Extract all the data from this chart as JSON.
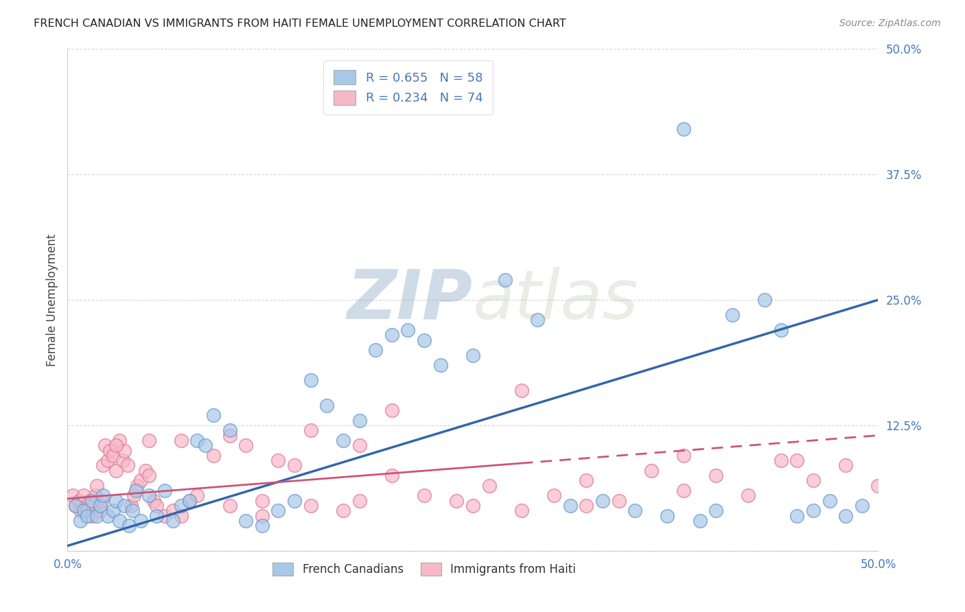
{
  "title": "FRENCH CANADIAN VS IMMIGRANTS FROM HAITI FEMALE UNEMPLOYMENT CORRELATION CHART",
  "source": "Source: ZipAtlas.com",
  "ylabel": "Female Unemployment",
  "xlim": [
    0.0,
    50.0
  ],
  "ylim": [
    0.0,
    50.0
  ],
  "blue_color": "#a8c8e8",
  "blue_edge_color": "#6699cc",
  "blue_line_color": "#3366aa",
  "blue_text_color": "#4477bb",
  "pink_color": "#f8b8c8",
  "pink_edge_color": "#dd7799",
  "pink_line_color": "#cc5577",
  "bg_color": "#ffffff",
  "grid_color": "#bbbbbb",
  "watermark_color": "#ccd8e8",
  "blue_line_x0": 0.0,
  "blue_line_y0": 0.5,
  "blue_line_x1": 50.0,
  "blue_line_y1": 25.0,
  "pink_line_x0": 0.0,
  "pink_line_y0": 5.2,
  "pink_line_x1": 50.0,
  "pink_line_y1": 11.5,
  "fc_x": [
    0.5,
    0.8,
    1.0,
    1.2,
    1.5,
    1.8,
    2.0,
    2.2,
    2.5,
    2.8,
    3.0,
    3.2,
    3.5,
    3.8,
    4.0,
    4.2,
    4.5,
    5.0,
    5.5,
    6.0,
    6.5,
    7.0,
    7.5,
    8.0,
    8.5,
    9.0,
    10.0,
    11.0,
    12.0,
    13.0,
    14.0,
    15.0,
    16.0,
    17.0,
    18.0,
    19.0,
    20.0,
    21.0,
    22.0,
    23.0,
    25.0,
    27.0,
    29.0,
    31.0,
    33.0,
    35.0,
    37.0,
    39.0,
    41.0,
    43.0,
    44.0,
    45.0,
    46.0,
    47.0,
    48.0,
    49.0,
    40.0,
    38.0
  ],
  "fc_y": [
    4.5,
    3.0,
    4.0,
    3.5,
    5.0,
    3.5,
    4.5,
    5.5,
    3.5,
    4.0,
    5.0,
    3.0,
    4.5,
    2.5,
    4.0,
    6.0,
    3.0,
    5.5,
    3.5,
    6.0,
    3.0,
    4.5,
    5.0,
    11.0,
    10.5,
    13.5,
    12.0,
    3.0,
    2.5,
    4.0,
    5.0,
    17.0,
    14.5,
    11.0,
    13.0,
    20.0,
    21.5,
    22.0,
    21.0,
    18.5,
    19.5,
    27.0,
    23.0,
    4.5,
    5.0,
    4.0,
    3.5,
    3.0,
    23.5,
    25.0,
    22.0,
    3.5,
    4.0,
    5.0,
    3.5,
    4.5,
    4.0,
    42.0
  ],
  "hi_x": [
    0.3,
    0.5,
    0.7,
    0.8,
    1.0,
    1.2,
    1.4,
    1.5,
    1.6,
    1.7,
    1.8,
    2.0,
    2.1,
    2.2,
    2.3,
    2.5,
    2.6,
    2.8,
    3.0,
    3.2,
    3.4,
    3.5,
    3.7,
    3.9,
    4.1,
    4.3,
    4.5,
    4.8,
    5.0,
    5.3,
    5.5,
    6.0,
    6.5,
    7.0,
    7.5,
    8.0,
    9.0,
    10.0,
    11.0,
    12.0,
    13.0,
    14.0,
    15.0,
    17.0,
    18.0,
    20.0,
    22.0,
    24.0,
    26.0,
    28.0,
    30.0,
    32.0,
    34.0,
    36.0,
    38.0,
    40.0,
    42.0,
    44.0,
    46.0,
    48.0,
    50.0,
    28.0,
    20.0,
    15.0,
    10.0,
    5.0,
    3.0,
    7.0,
    12.0,
    18.0,
    25.0,
    32.0,
    38.0,
    45.0
  ],
  "hi_y": [
    5.5,
    4.5,
    5.0,
    4.0,
    5.5,
    4.0,
    5.0,
    3.5,
    4.5,
    5.5,
    6.5,
    4.0,
    5.0,
    8.5,
    10.5,
    9.0,
    10.0,
    9.5,
    8.0,
    11.0,
    9.0,
    10.0,
    8.5,
    4.5,
    5.5,
    6.5,
    7.0,
    8.0,
    7.5,
    5.0,
    4.5,
    3.5,
    4.0,
    3.5,
    5.0,
    5.5,
    9.5,
    4.5,
    10.5,
    5.0,
    9.0,
    8.5,
    4.5,
    4.0,
    5.0,
    7.5,
    5.5,
    5.0,
    6.5,
    4.0,
    5.5,
    7.0,
    5.0,
    8.0,
    6.0,
    7.5,
    5.5,
    9.0,
    7.0,
    8.5,
    6.5,
    16.0,
    14.0,
    12.0,
    11.5,
    11.0,
    10.5,
    11.0,
    3.5,
    10.5,
    4.5,
    4.5,
    9.5,
    9.0
  ]
}
